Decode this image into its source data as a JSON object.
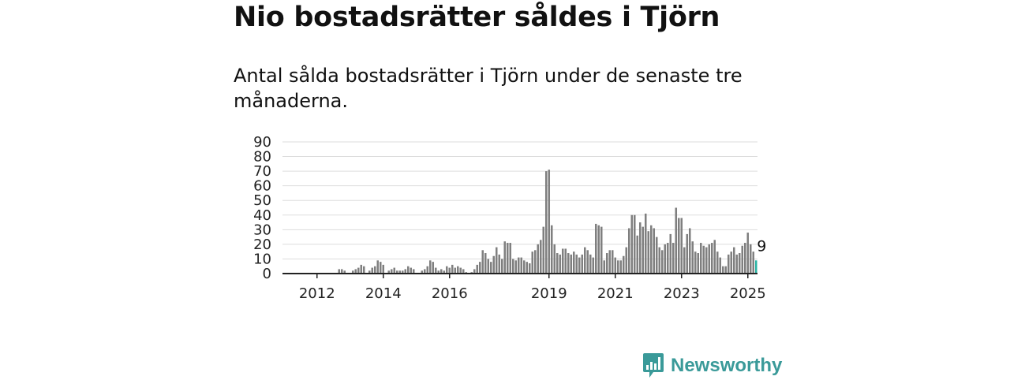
{
  "header": {
    "title": "Nio bostadsrätter såldes i Tjörn",
    "subtitle": "Antal sålda bostadsrätter i Tjörn under de senaste tre månaderna."
  },
  "brand": {
    "name": "Newsworthy",
    "icon": "newsworthy-logo-icon",
    "color": "#3a9a99"
  },
  "colors": {
    "bar": "#7f7f7f",
    "highlight": "#2bb3a4",
    "grid": "#dddddd",
    "axis": "#222222"
  },
  "chart_data": {
    "type": "bar",
    "title": "",
    "xlabel": "",
    "ylabel": "",
    "ylim": [
      0,
      90
    ],
    "yticks": [
      0,
      10,
      20,
      30,
      40,
      50,
      60,
      70,
      80,
      90
    ],
    "xticks": [
      "2012",
      "2014",
      "2016",
      "2019",
      "2021",
      "2023",
      "2025"
    ],
    "grid": true,
    "start_month": "2011-01",
    "interval": "month",
    "highlight_last": true,
    "last_value_label": "9",
    "values": [
      0,
      0,
      0,
      0,
      0,
      0,
      0,
      0,
      0,
      0,
      0,
      0,
      0,
      0,
      0,
      0,
      0,
      0,
      0,
      0,
      3,
      3,
      2,
      0,
      0,
      2,
      3,
      4,
      6,
      5,
      0,
      2,
      4,
      5,
      9,
      8,
      6,
      0,
      2,
      3,
      4,
      2,
      2,
      2,
      3,
      5,
      4,
      3,
      0,
      0,
      2,
      3,
      5,
      9,
      8,
      4,
      2,
      3,
      2,
      5,
      4,
      6,
      4,
      5,
      4,
      3,
      1,
      0,
      1,
      3,
      6,
      8,
      16,
      14,
      10,
      8,
      12,
      18,
      13,
      10,
      22,
      21,
      21,
      10,
      9,
      11,
      11,
      9,
      8,
      7,
      15,
      16,
      20,
      23,
      32,
      70,
      71,
      33,
      20,
      14,
      13,
      17,
      17,
      14,
      13,
      15,
      13,
      11,
      13,
      18,
      16,
      13,
      11,
      34,
      33,
      32,
      9,
      14,
      16,
      16,
      11,
      9,
      9,
      12,
      18,
      31,
      40,
      40,
      26,
      35,
      32,
      41,
      29,
      33,
      31,
      25,
      18,
      16,
      20,
      21,
      27,
      21,
      45,
      38,
      38,
      18,
      27,
      31,
      22,
      15,
      14,
      21,
      19,
      18,
      20,
      21,
      23,
      15,
      11,
      5,
      5,
      13,
      15,
      18,
      13,
      14,
      19,
      21,
      28,
      20,
      15,
      9
    ]
  }
}
